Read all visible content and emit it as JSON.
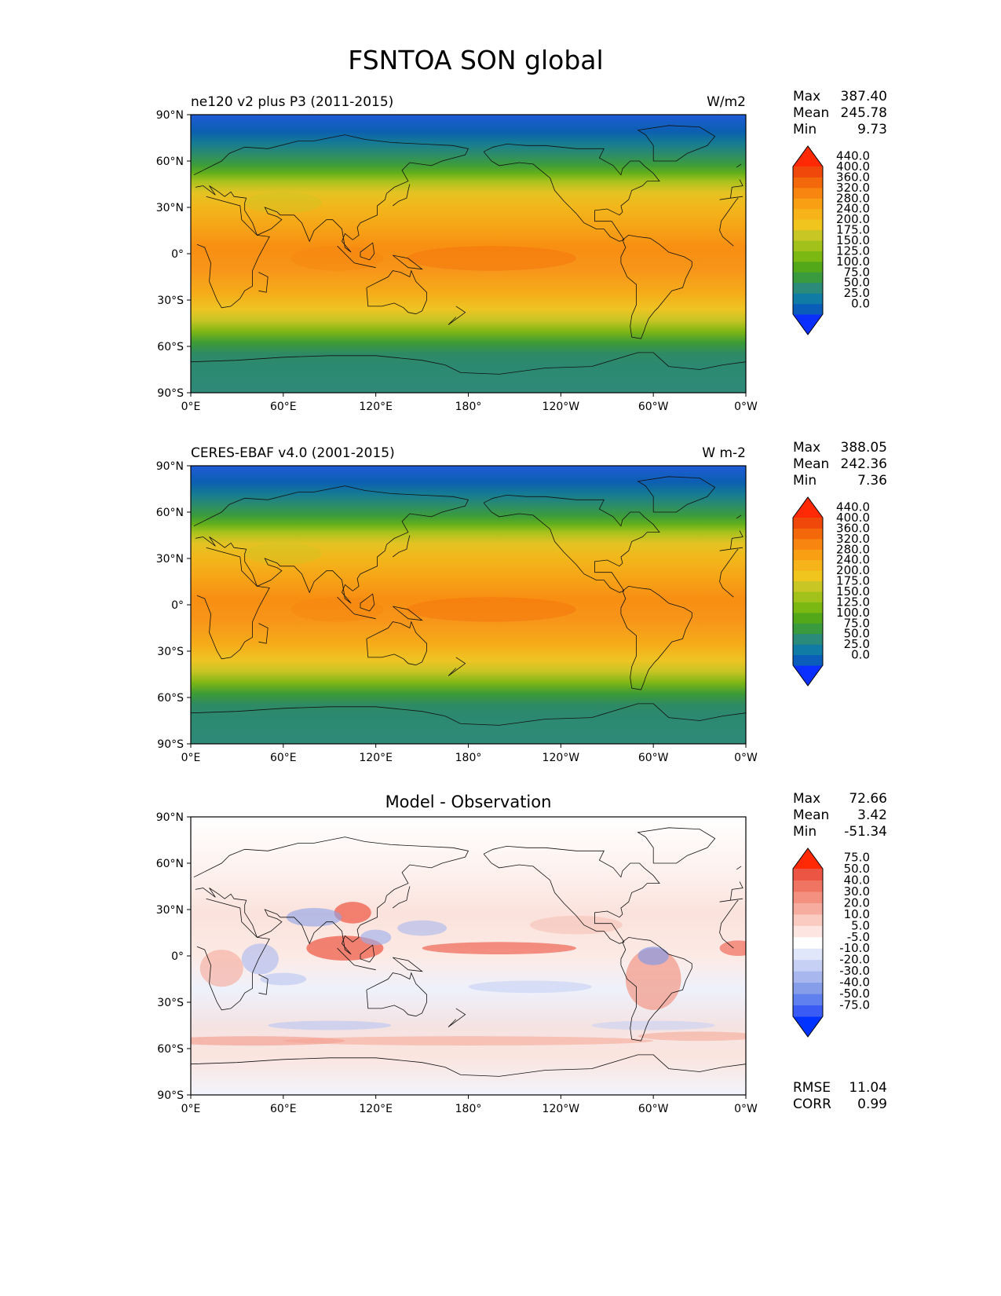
{
  "figure": {
    "title": "FSNTOA SON global",
    "panels": [
      {
        "left_title": "ne120 v2 plus P3 (2011-2015)",
        "right_title": "W/m2",
        "center_title": "",
        "stats": [
          [
            "Max",
            "387.40"
          ],
          [
            "Mean",
            "245.78"
          ],
          [
            "Min",
            "9.73"
          ]
        ],
        "extra_stats": [],
        "colorbar_ticks": [
          "0.0",
          "25.0",
          "50.0",
          "75.0",
          "100.0",
          "125.0",
          "150.0",
          "175.0",
          "200.0",
          "240.0",
          "280.0",
          "320.0",
          "360.0",
          "400.0",
          "440.0"
        ],
        "colorbar_colors": [
          "#0b2fff",
          "#0a5db8",
          "#107ba5",
          "#2b8b7a",
          "#3a9b3e",
          "#53a819",
          "#7bb812",
          "#a2c21b",
          "#c8c625",
          "#f0c51d",
          "#f7b41a",
          "#f89f14",
          "#f7850f",
          "#f3680b",
          "#ef480a",
          "#ff2a05"
        ]
      },
      {
        "left_title": "CERES-EBAF v4.0 (2001-2015)",
        "right_title": "W m-2",
        "center_title": "",
        "stats": [
          [
            "Max",
            "388.05"
          ],
          [
            "Mean",
            "242.36"
          ],
          [
            "Min",
            "7.36"
          ]
        ],
        "extra_stats": [],
        "colorbar_ticks": [
          "0.0",
          "25.0",
          "50.0",
          "75.0",
          "100.0",
          "125.0",
          "150.0",
          "175.0",
          "200.0",
          "240.0",
          "280.0",
          "320.0",
          "360.0",
          "400.0",
          "440.0"
        ],
        "colorbar_colors": [
          "#0b2fff",
          "#0a5db8",
          "#107ba5",
          "#2b8b7a",
          "#3a9b3e",
          "#53a819",
          "#7bb812",
          "#a2c21b",
          "#c8c625",
          "#f0c51d",
          "#f7b41a",
          "#f89f14",
          "#f7850f",
          "#f3680b",
          "#ef480a",
          "#ff2a05"
        ]
      },
      {
        "left_title": "",
        "right_title": "",
        "center_title": "Model - Observation",
        "stats": [
          [
            "Max",
            "72.66"
          ],
          [
            "Mean",
            "3.42"
          ],
          [
            "Min",
            "-51.34"
          ]
        ],
        "extra_stats": [
          [
            "RMSE",
            "11.04"
          ],
          [
            "CORR",
            "0.99"
          ]
        ],
        "colorbar_ticks": [
          "-75.0",
          "-50.0",
          "-40.0",
          "-30.0",
          "-20.0",
          "-10.0",
          "-5.0",
          "5.0",
          "10.0",
          "20.0",
          "30.0",
          "40.0",
          "50.0",
          "75.0"
        ],
        "colorbar_colors": [
          "#0033ff",
          "#3a5cf5",
          "#6180ef",
          "#869de9",
          "#a8b8ef",
          "#c6d0f4",
          "#e1e7fa",
          "#ffffff",
          "#fde6e1",
          "#f9cbc1",
          "#f6ad9f",
          "#f3907f",
          "#ef7462",
          "#ec5443",
          "#ff2a05"
        ]
      }
    ]
  },
  "axes": {
    "lat_ticks": [
      "90°N",
      "60°N",
      "30°N",
      "0°",
      "30°S",
      "60°S",
      "90°S"
    ],
    "lon_ticks": [
      "0°E",
      "60°E",
      "120°E",
      "180°",
      "120°W",
      "60°W",
      "0°W"
    ]
  },
  "chart_data": [
    {
      "type": "heatmap",
      "title": "ne120 v2 plus P3 (2011-2015)",
      "units": "W/m2",
      "variable": "FSNTOA",
      "x_range": [
        0,
        360
      ],
      "y_range": [
        -90,
        90
      ],
      "levels": [
        0,
        25,
        50,
        75,
        100,
        125,
        150,
        175,
        200,
        240,
        280,
        320,
        360,
        400,
        440
      ],
      "zonal_mean_approx": {
        "lat": [
          90,
          75,
          60,
          45,
          30,
          15,
          0,
          -15,
          -30,
          -45,
          -60,
          -75,
          -90
        ],
        "value": [
          20,
          80,
          130,
          210,
          275,
          300,
          320,
          325,
          300,
          245,
          150,
          70,
          60
        ]
      },
      "stats": {
        "max": 387.4,
        "mean": 245.78,
        "min": 9.73
      }
    },
    {
      "type": "heatmap",
      "title": "CERES-EBAF v4.0 (2001-2015)",
      "units": "W m-2",
      "variable": "FSNTOA",
      "x_range": [
        0,
        360
      ],
      "y_range": [
        -90,
        90
      ],
      "levels": [
        0,
        25,
        50,
        75,
        100,
        125,
        150,
        175,
        200,
        240,
        280,
        320,
        360,
        400,
        440
      ],
      "zonal_mean_approx": {
        "lat": [
          90,
          75,
          60,
          45,
          30,
          15,
          0,
          -15,
          -30,
          -45,
          -60,
          -75,
          -90
        ],
        "value": [
          18,
          75,
          125,
          205,
          270,
          295,
          310,
          320,
          295,
          240,
          145,
          70,
          60
        ]
      },
      "stats": {
        "max": 388.05,
        "mean": 242.36,
        "min": 7.36
      }
    },
    {
      "type": "heatmap",
      "title": "Model - Observation",
      "units": "",
      "x_range": [
        0,
        360
      ],
      "y_range": [
        -90,
        90
      ],
      "levels": [
        -75,
        -50,
        -40,
        -30,
        -20,
        -10,
        -5,
        5,
        10,
        20,
        30,
        40,
        50,
        75
      ],
      "stats": {
        "max": 72.66,
        "mean": 3.42,
        "min": -51.34,
        "rmse": 11.04,
        "corr": 0.99
      }
    }
  ]
}
